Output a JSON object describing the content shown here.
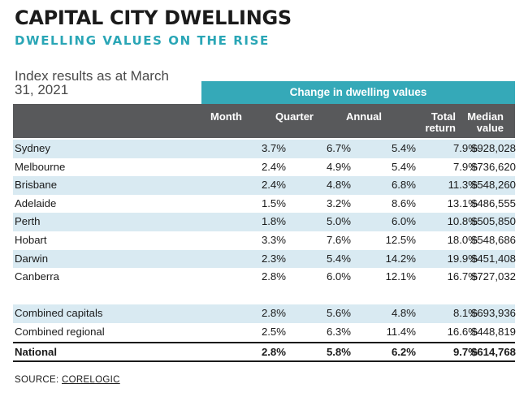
{
  "title": "CAPITAL CITY DWELLINGS",
  "subtitle": "DWELLING VALUES ON THE RISE",
  "index_note": "Index results as at March 31, 2021",
  "banner": "Change in dwelling values",
  "source_label": "SOURCE:",
  "source_name": "CORELOGIC",
  "colors": {
    "accent_teal": "#35a9b8",
    "header_grey": "#58595b",
    "row_shade": "#d9eaf2"
  },
  "chart_data": {
    "type": "table",
    "title": "CAPITAL CITY DWELLINGS",
    "subtitle": "DWELLING VALUES ON THE RISE",
    "columns": [
      "Month",
      "Quarter",
      "Annual",
      "Total return",
      "Median value"
    ],
    "rows": [
      {
        "name": "Sydney",
        "month": "3.7%",
        "quarter": "6.7%",
        "annual": "5.4%",
        "total": "7.9%",
        "median": "$928,028"
      },
      {
        "name": "Melbourne",
        "month": "2.4%",
        "quarter": "4.9%",
        "annual": "5.4%",
        "total": "7.9%",
        "median": "$736,620"
      },
      {
        "name": "Brisbane",
        "month": "2.4%",
        "quarter": "4.8%",
        "annual": "6.8%",
        "total": "11.3%",
        "median": "$548,260"
      },
      {
        "name": "Adelaide",
        "month": "1.5%",
        "quarter": "3.2%",
        "annual": "8.6%",
        "total": "13.1%",
        "median": "$486,555"
      },
      {
        "name": "Perth",
        "month": "1.8%",
        "quarter": "5.0%",
        "annual": "6.0%",
        "total": "10.8%",
        "median": "$505,850"
      },
      {
        "name": "Hobart",
        "month": "3.3%",
        "quarter": "7.6%",
        "annual": "12.5%",
        "total": "18.0%",
        "median": "$548,686"
      },
      {
        "name": "Darwin",
        "month": "2.3%",
        "quarter": "5.4%",
        "annual": "14.2%",
        "total": "19.9%",
        "median": "$451,408"
      },
      {
        "name": "Canberra",
        "month": "2.8%",
        "quarter": "6.0%",
        "annual": "12.1%",
        "total": "16.7%",
        "median": "$727,032"
      }
    ],
    "summary_rows": [
      {
        "name": "Combined capitals",
        "month": "2.8%",
        "quarter": "5.6%",
        "annual": "4.8%",
        "total": "8.1%",
        "median": "$693,936"
      },
      {
        "name": "Combined regional",
        "month": "2.5%",
        "quarter": "6.3%",
        "annual": "11.4%",
        "total": "16.6%",
        "median": "$448,819"
      }
    ],
    "national_row": {
      "name": "National",
      "month": "2.8%",
      "quarter": "5.8%",
      "annual": "6.2%",
      "total": "9.7%",
      "median": "$614,768"
    }
  }
}
